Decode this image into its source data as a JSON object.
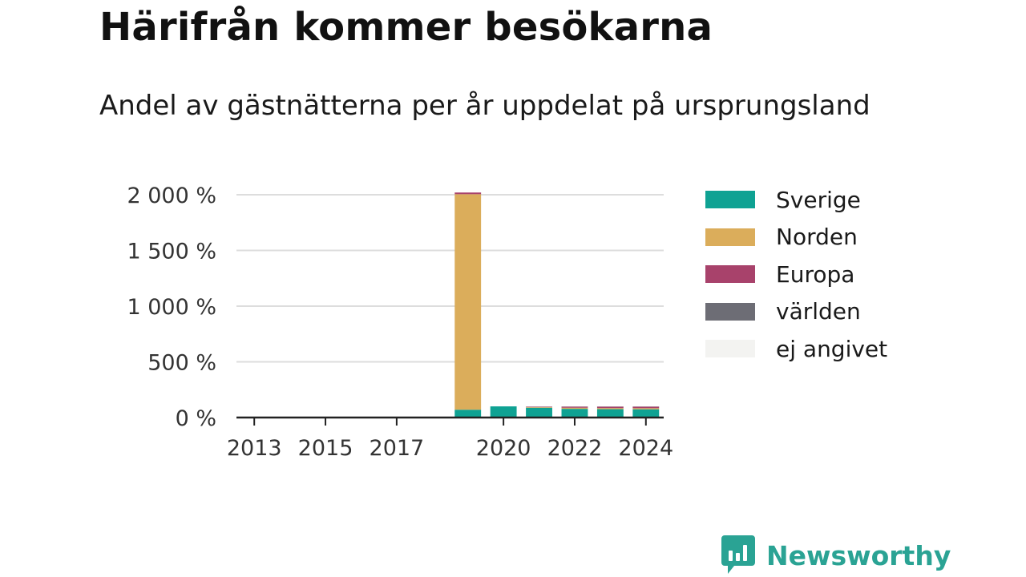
{
  "title": "Härifrån kommer besökarna",
  "subtitle": "Andel av gästnätterna per år uppdelat på ursprungsland",
  "brand": {
    "name": "Newsworthy",
    "color": "#2aa394",
    "icon": "newsworthy-logo-icon"
  },
  "chart_data": {
    "type": "bar",
    "stacked": true,
    "categories": [
      "2013",
      "2014",
      "2015",
      "2016",
      "2017",
      "2018",
      "2019",
      "2020",
      "2021",
      "2022",
      "2023",
      "2024"
    ],
    "x_tick_labels": [
      "2013",
      "2015",
      "2017",
      "2020",
      "2022",
      "2024"
    ],
    "y_tick_labels": [
      "0 %",
      "500 %",
      "1 000 %",
      "1 500 %",
      "2 000 %"
    ],
    "ylim": [
      0,
      2000
    ],
    "yticks": [
      0,
      500,
      1000,
      1500,
      2000
    ],
    "grid": true,
    "legend_position": "right",
    "series": [
      {
        "name": "Sverige",
        "color": "#0fa293",
        "values": [
          null,
          null,
          null,
          null,
          null,
          null,
          70,
          100,
          88,
          78,
          75,
          74
        ]
      },
      {
        "name": "Norden",
        "color": "#dbad5b",
        "values": [
          null,
          null,
          null,
          null,
          null,
          null,
          1935,
          0,
          5,
          10,
          10,
          10
        ]
      },
      {
        "name": "Europa",
        "color": "#a8426b",
        "values": [
          null,
          null,
          null,
          null,
          null,
          null,
          15,
          0,
          4,
          9,
          12,
          13
        ]
      },
      {
        "name": "världen",
        "color": "#6d6d75",
        "values": [
          null,
          null,
          null,
          null,
          null,
          null,
          0,
          0,
          1,
          2,
          2,
          2
        ]
      },
      {
        "name": "ej angivet",
        "color": "#f3f3f1",
        "values": [
          null,
          null,
          null,
          null,
          null,
          null,
          0,
          0,
          0,
          1,
          1,
          1
        ]
      }
    ]
  }
}
